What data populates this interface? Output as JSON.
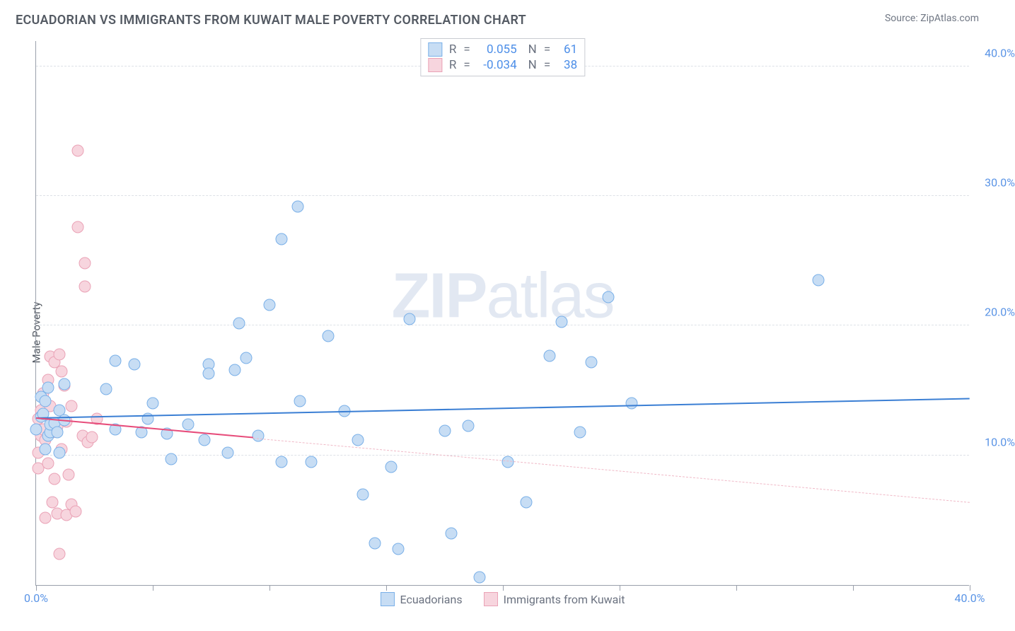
{
  "header": {
    "title": "ECUADORIAN VS IMMIGRANTS FROM KUWAIT MALE POVERTY CORRELATION CHART",
    "source_prefix": "Source: ",
    "source_name": "ZipAtlas.com"
  },
  "watermark": {
    "part1": "ZIP",
    "part2": "atlas"
  },
  "chart": {
    "type": "scatter",
    "ylabel": "Male Poverty",
    "xlim": [
      0,
      40
    ],
    "ylim": [
      0,
      42
    ],
    "xtick_positions": [
      0,
      5,
      10,
      15,
      20,
      25,
      30,
      35,
      40
    ],
    "xtick_labels": {
      "min": "0.0%",
      "max": "40.0%"
    },
    "yticks": [
      {
        "v": 10,
        "label": "10.0%"
      },
      {
        "v": 20,
        "label": "20.0%"
      },
      {
        "v": 30,
        "label": "30.0%"
      },
      {
        "v": 40,
        "label": "40.0%"
      }
    ],
    "axis_label_color": "#5a94e6",
    "background_color": "#ffffff",
    "grid_color": "#dde1e7",
    "point_radius": 8.5,
    "series": [
      {
        "name": "Ecuadorians",
        "fill": "#c7ddf4",
        "stroke": "#7ab0e8",
        "r_value": "0.055",
        "n_value": "61",
        "trend": {
          "y_start": 12.8,
          "y_end": 14.3,
          "x_end": 40,
          "color": "#3b7fd4",
          "width": 2.5,
          "dash": false
        },
        "points": [
          [
            0,
            12
          ],
          [
            0.2,
            13
          ],
          [
            0.2,
            14.5
          ],
          [
            0.3,
            13.2
          ],
          [
            0.4,
            10.5
          ],
          [
            0.4,
            14.2
          ],
          [
            0.5,
            11.5
          ],
          [
            0.5,
            15.2
          ],
          [
            0.6,
            11.8
          ],
          [
            0.6,
            12.4
          ],
          [
            0.8,
            12.5
          ],
          [
            0.9,
            11.8
          ],
          [
            1.0,
            13.5
          ],
          [
            1.0,
            10.2
          ],
          [
            1.2,
            12.7
          ],
          [
            1.2,
            15.5
          ],
          [
            3.0,
            15.1
          ],
          [
            3.4,
            17.3
          ],
          [
            3.4,
            12.0
          ],
          [
            4.2,
            17.0
          ],
          [
            4.5,
            11.8
          ],
          [
            4.8,
            12.8
          ],
          [
            5.0,
            14.0
          ],
          [
            5.6,
            11.7
          ],
          [
            5.8,
            9.7
          ],
          [
            6.5,
            12.4
          ],
          [
            7.2,
            11.2
          ],
          [
            7.4,
            17.0
          ],
          [
            7.4,
            16.3
          ],
          [
            8.2,
            10.2
          ],
          [
            8.5,
            16.6
          ],
          [
            8.7,
            20.2
          ],
          [
            9.0,
            17.5
          ],
          [
            9.5,
            11.5
          ],
          [
            10.0,
            21.6
          ],
          [
            10.5,
            26.7
          ],
          [
            10.5,
            9.5
          ],
          [
            11.2,
            29.2
          ],
          [
            11.3,
            14.2
          ],
          [
            11.8,
            9.5
          ],
          [
            12.5,
            19.2
          ],
          [
            13.2,
            13.4
          ],
          [
            13.8,
            11.2
          ],
          [
            14.0,
            7.0
          ],
          [
            14.5,
            3.2
          ],
          [
            15.2,
            9.1
          ],
          [
            15.5,
            2.8
          ],
          [
            16.0,
            20.5
          ],
          [
            17.5,
            11.9
          ],
          [
            17.8,
            4.0
          ],
          [
            18.5,
            12.3
          ],
          [
            19.0,
            0.6
          ],
          [
            20.2,
            9.5
          ],
          [
            21.0,
            6.4
          ],
          [
            22.0,
            17.7
          ],
          [
            22.5,
            20.3
          ],
          [
            23.3,
            11.8
          ],
          [
            23.8,
            17.2
          ],
          [
            24.5,
            22.2
          ],
          [
            25.5,
            14.0
          ],
          [
            33.5,
            23.5
          ]
        ]
      },
      {
        "name": "Immigrants from Kuwait",
        "fill": "#f7d5de",
        "stroke": "#eaa2b6",
        "r_value": "-0.034",
        "n_value": "38",
        "trend": {
          "y_start": 12.8,
          "y_end": 11.3,
          "x_end": 9.3,
          "color": "#e74d7b",
          "width": 2.5,
          "dash": false,
          "extrapolate_to": 40,
          "extrapolate_color": "#f0b9c7"
        },
        "points": [
          [
            0.1,
            12.8
          ],
          [
            0.1,
            10.2
          ],
          [
            0.1,
            9.0
          ],
          [
            0.2,
            11.5
          ],
          [
            0.2,
            13.5
          ],
          [
            0.3,
            12.0
          ],
          [
            0.3,
            14.8
          ],
          [
            0.4,
            11.2
          ],
          [
            0.4,
            5.2
          ],
          [
            0.5,
            9.4
          ],
          [
            0.5,
            15.8
          ],
          [
            0.6,
            13.8
          ],
          [
            0.6,
            17.6
          ],
          [
            0.7,
            11.8
          ],
          [
            0.7,
            6.4
          ],
          [
            0.8,
            17.2
          ],
          [
            0.8,
            8.2
          ],
          [
            0.9,
            5.5
          ],
          [
            0.9,
            12.2
          ],
          [
            1.0,
            17.8
          ],
          [
            1.0,
            2.4
          ],
          [
            1.1,
            16.5
          ],
          [
            1.1,
            10.5
          ],
          [
            1.2,
            15.4
          ],
          [
            1.3,
            5.4
          ],
          [
            1.3,
            12.6
          ],
          [
            1.4,
            8.5
          ],
          [
            1.5,
            13.8
          ],
          [
            1.5,
            6.2
          ],
          [
            1.7,
            5.7
          ],
          [
            1.8,
            33.5
          ],
          [
            1.8,
            27.6
          ],
          [
            2.0,
            11.5
          ],
          [
            2.1,
            24.8
          ],
          [
            2.1,
            23.0
          ],
          [
            2.2,
            11.0
          ],
          [
            2.4,
            11.4
          ],
          [
            2.6,
            12.8
          ]
        ]
      }
    ],
    "legend_top_labels": {
      "r": "R",
      "eq": "=",
      "n": "N"
    },
    "legend_bottom": [
      {
        "label": "Ecuadorians",
        "fill": "#c7ddf4",
        "stroke": "#7ab0e8"
      },
      {
        "label": "Immigrants from Kuwait",
        "fill": "#f7d5de",
        "stroke": "#eaa2b6"
      }
    ]
  }
}
